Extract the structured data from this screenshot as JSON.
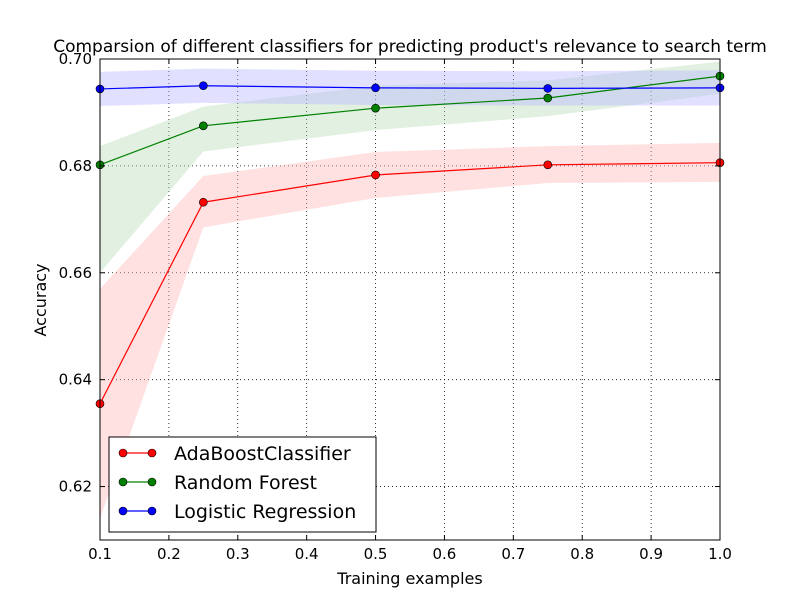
{
  "chart_data": {
    "type": "line",
    "title": "Comparsion of different classifiers for predicting product's relevance to search term",
    "xlabel": "Training examples",
    "ylabel": "Accuracy",
    "xlim": [
      0.1,
      1.0
    ],
    "ylim": [
      0.61,
      0.7
    ],
    "xticks": [
      "0.1",
      "0.2",
      "0.3",
      "0.4",
      "0.5",
      "0.6",
      "0.7",
      "0.8",
      "0.9",
      "1.0"
    ],
    "yticks": [
      "0.62",
      "0.64",
      "0.66",
      "0.68",
      "0.70"
    ],
    "grid": true,
    "legend_position": "bottom-left",
    "x": [
      0.1,
      0.25,
      0.5,
      0.75,
      1.0
    ],
    "series": [
      {
        "name": "AdaBoostClassifier",
        "color": "#ff0000",
        "fill": "#ffb3b3",
        "values": [
          0.6355,
          0.6732,
          0.6783,
          0.6802,
          0.6806
        ],
        "lower": [
          0.614,
          0.6685,
          0.674,
          0.6768,
          0.677
        ],
        "upper": [
          0.657,
          0.6781,
          0.6826,
          0.6837,
          0.6843
        ]
      },
      {
        "name": "Random Forest",
        "color": "#008000",
        "fill": "#b3d9b3",
        "values": [
          0.6802,
          0.6875,
          0.6908,
          0.6927,
          0.6968
        ],
        "lower": [
          0.66,
          0.6827,
          0.6867,
          0.6893,
          0.6935
        ],
        "upper": [
          0.6837,
          0.6911,
          0.695,
          0.696,
          0.6995
        ]
      },
      {
        "name": "Logistic Regression",
        "color": "#0000ff",
        "fill": "#b3b3ff",
        "values": [
          0.6944,
          0.695,
          0.6946,
          0.6945,
          0.6946
        ],
        "lower": [
          0.6912,
          0.6918,
          0.6914,
          0.6913,
          0.6913
        ],
        "upper": [
          0.6976,
          0.6982,
          0.6978,
          0.6977,
          0.6979
        ]
      }
    ]
  }
}
